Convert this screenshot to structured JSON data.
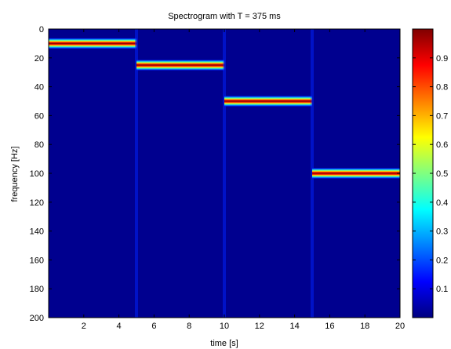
{
  "chart_data": {
    "type": "heatmap",
    "title": "Spectrogram with T = 375 ms",
    "xlabel": "time [s]",
    "ylabel": "frequency [Hz]",
    "xlim": [
      0,
      20
    ],
    "ylim": [
      0,
      200
    ],
    "y_reversed": true,
    "xticks": [
      2,
      4,
      6,
      8,
      10,
      12,
      14,
      16,
      18,
      20
    ],
    "yticks": [
      0,
      20,
      40,
      60,
      80,
      100,
      120,
      140,
      160,
      180,
      200
    ],
    "colormap": "jet",
    "background_color": "#00008f",
    "colorbar": {
      "range": [
        0,
        1
      ],
      "ticks": [
        0.1,
        0.2,
        0.3,
        0.4,
        0.5,
        0.6,
        0.7,
        0.8,
        0.9
      ]
    },
    "segments": [
      {
        "t_start": 0,
        "t_end": 5,
        "frequency": 10,
        "intensity": 1.0
      },
      {
        "t_start": 5,
        "t_end": 10,
        "frequency": 25,
        "intensity": 1.0
      },
      {
        "t_start": 10,
        "t_end": 15,
        "frequency": 50,
        "intensity": 1.0
      },
      {
        "t_start": 15,
        "t_end": 20,
        "frequency": 100,
        "intensity": 1.0
      }
    ]
  }
}
